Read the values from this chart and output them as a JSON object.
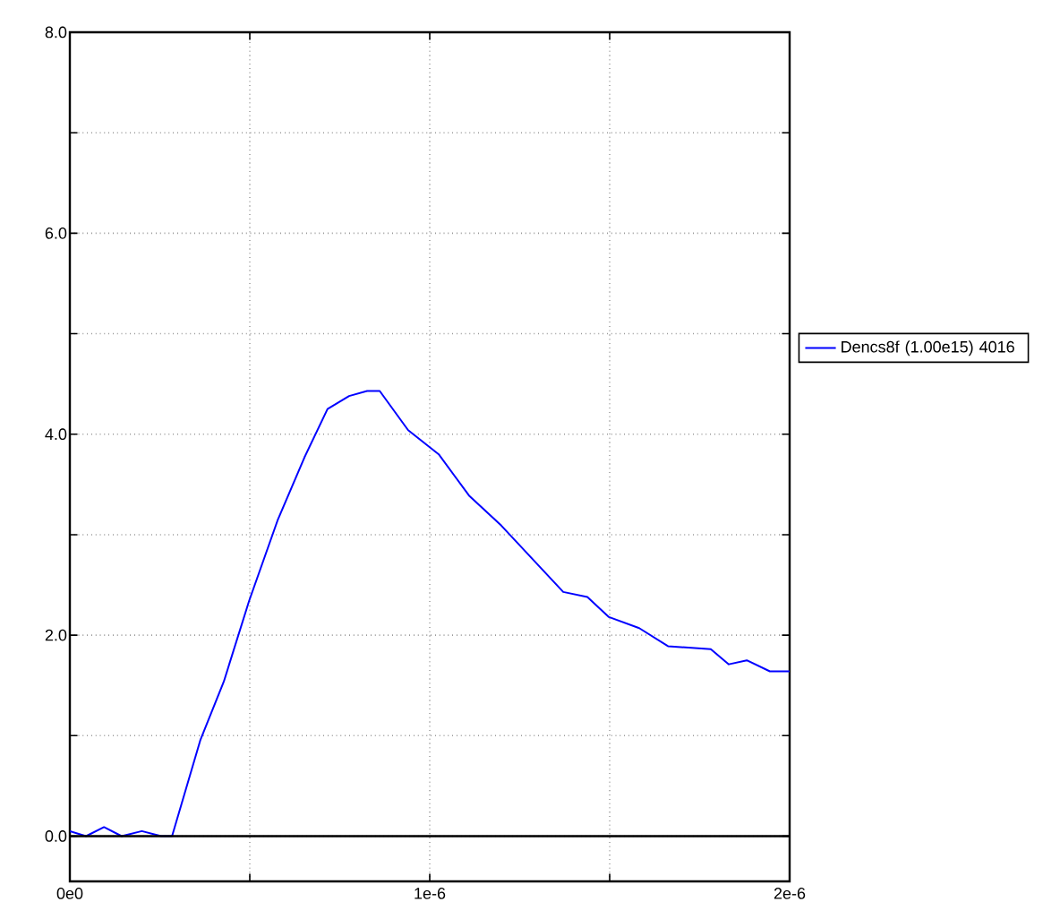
{
  "chart_data": {
    "type": "line",
    "x": [
      0,
      4.5e-08,
      9.5e-08,
      1.44e-07,
      2e-07,
      2.54e-07,
      2.84e-07,
      3.63e-07,
      4.28e-07,
      4.98e-07,
      5.77e-07,
      6.52e-07,
      7.16e-07,
      7.76e-07,
      8.26e-07,
      8.61e-07,
      9.4e-07,
      1.025e-06,
      1.109e-06,
      1.199e-06,
      1.371e-06,
      1.438e-06,
      1.498e-06,
      1.582e-06,
      1.662e-06,
      1.781e-06,
      1.831e-06,
      1.881e-06,
      1.945e-06,
      2e-06
    ],
    "series": [
      {
        "name": "Dencs8f (1.00e15) 4016",
        "color": "#0000ff",
        "values": [
          0.05,
          0.0,
          0.09,
          0.0,
          0.05,
          0.0,
          0.0,
          0.96,
          1.54,
          2.34,
          3.14,
          3.77,
          4.25,
          4.38,
          4.43,
          4.43,
          4.04,
          3.8,
          3.39,
          3.09,
          2.43,
          2.38,
          2.18,
          2.07,
          1.89,
          1.86,
          1.71,
          1.75,
          1.64,
          1.64
        ]
      }
    ],
    "xlim": [
      0,
      2e-06
    ],
    "xticks": [
      {
        "value": 0,
        "label": "0e0"
      },
      {
        "value": 5e-07,
        "label": null
      },
      {
        "value": 1e-06,
        "label": "1e-6"
      },
      {
        "value": 1.5e-06,
        "label": null
      },
      {
        "value": 2e-06,
        "label": "2e-6"
      }
    ],
    "ylim": [
      -0.45,
      8.0
    ],
    "yticks": [
      {
        "value": 0,
        "label": "0.0"
      },
      {
        "value": 1,
        "label": null
      },
      {
        "value": 2,
        "label": "2.0"
      },
      {
        "value": 3,
        "label": null
      },
      {
        "value": 4,
        "label": "4.0"
      },
      {
        "value": 5,
        "label": null
      },
      {
        "value": 6,
        "label": "6.0"
      },
      {
        "value": 7,
        "label": null
      },
      {
        "value": 8,
        "label": "8.0"
      }
    ],
    "ref_lines": [
      {
        "axis": "y",
        "value": 0,
        "color": "#000000"
      }
    ],
    "grid": true,
    "legend": "right",
    "marker": "none",
    "line_style": "solid"
  }
}
